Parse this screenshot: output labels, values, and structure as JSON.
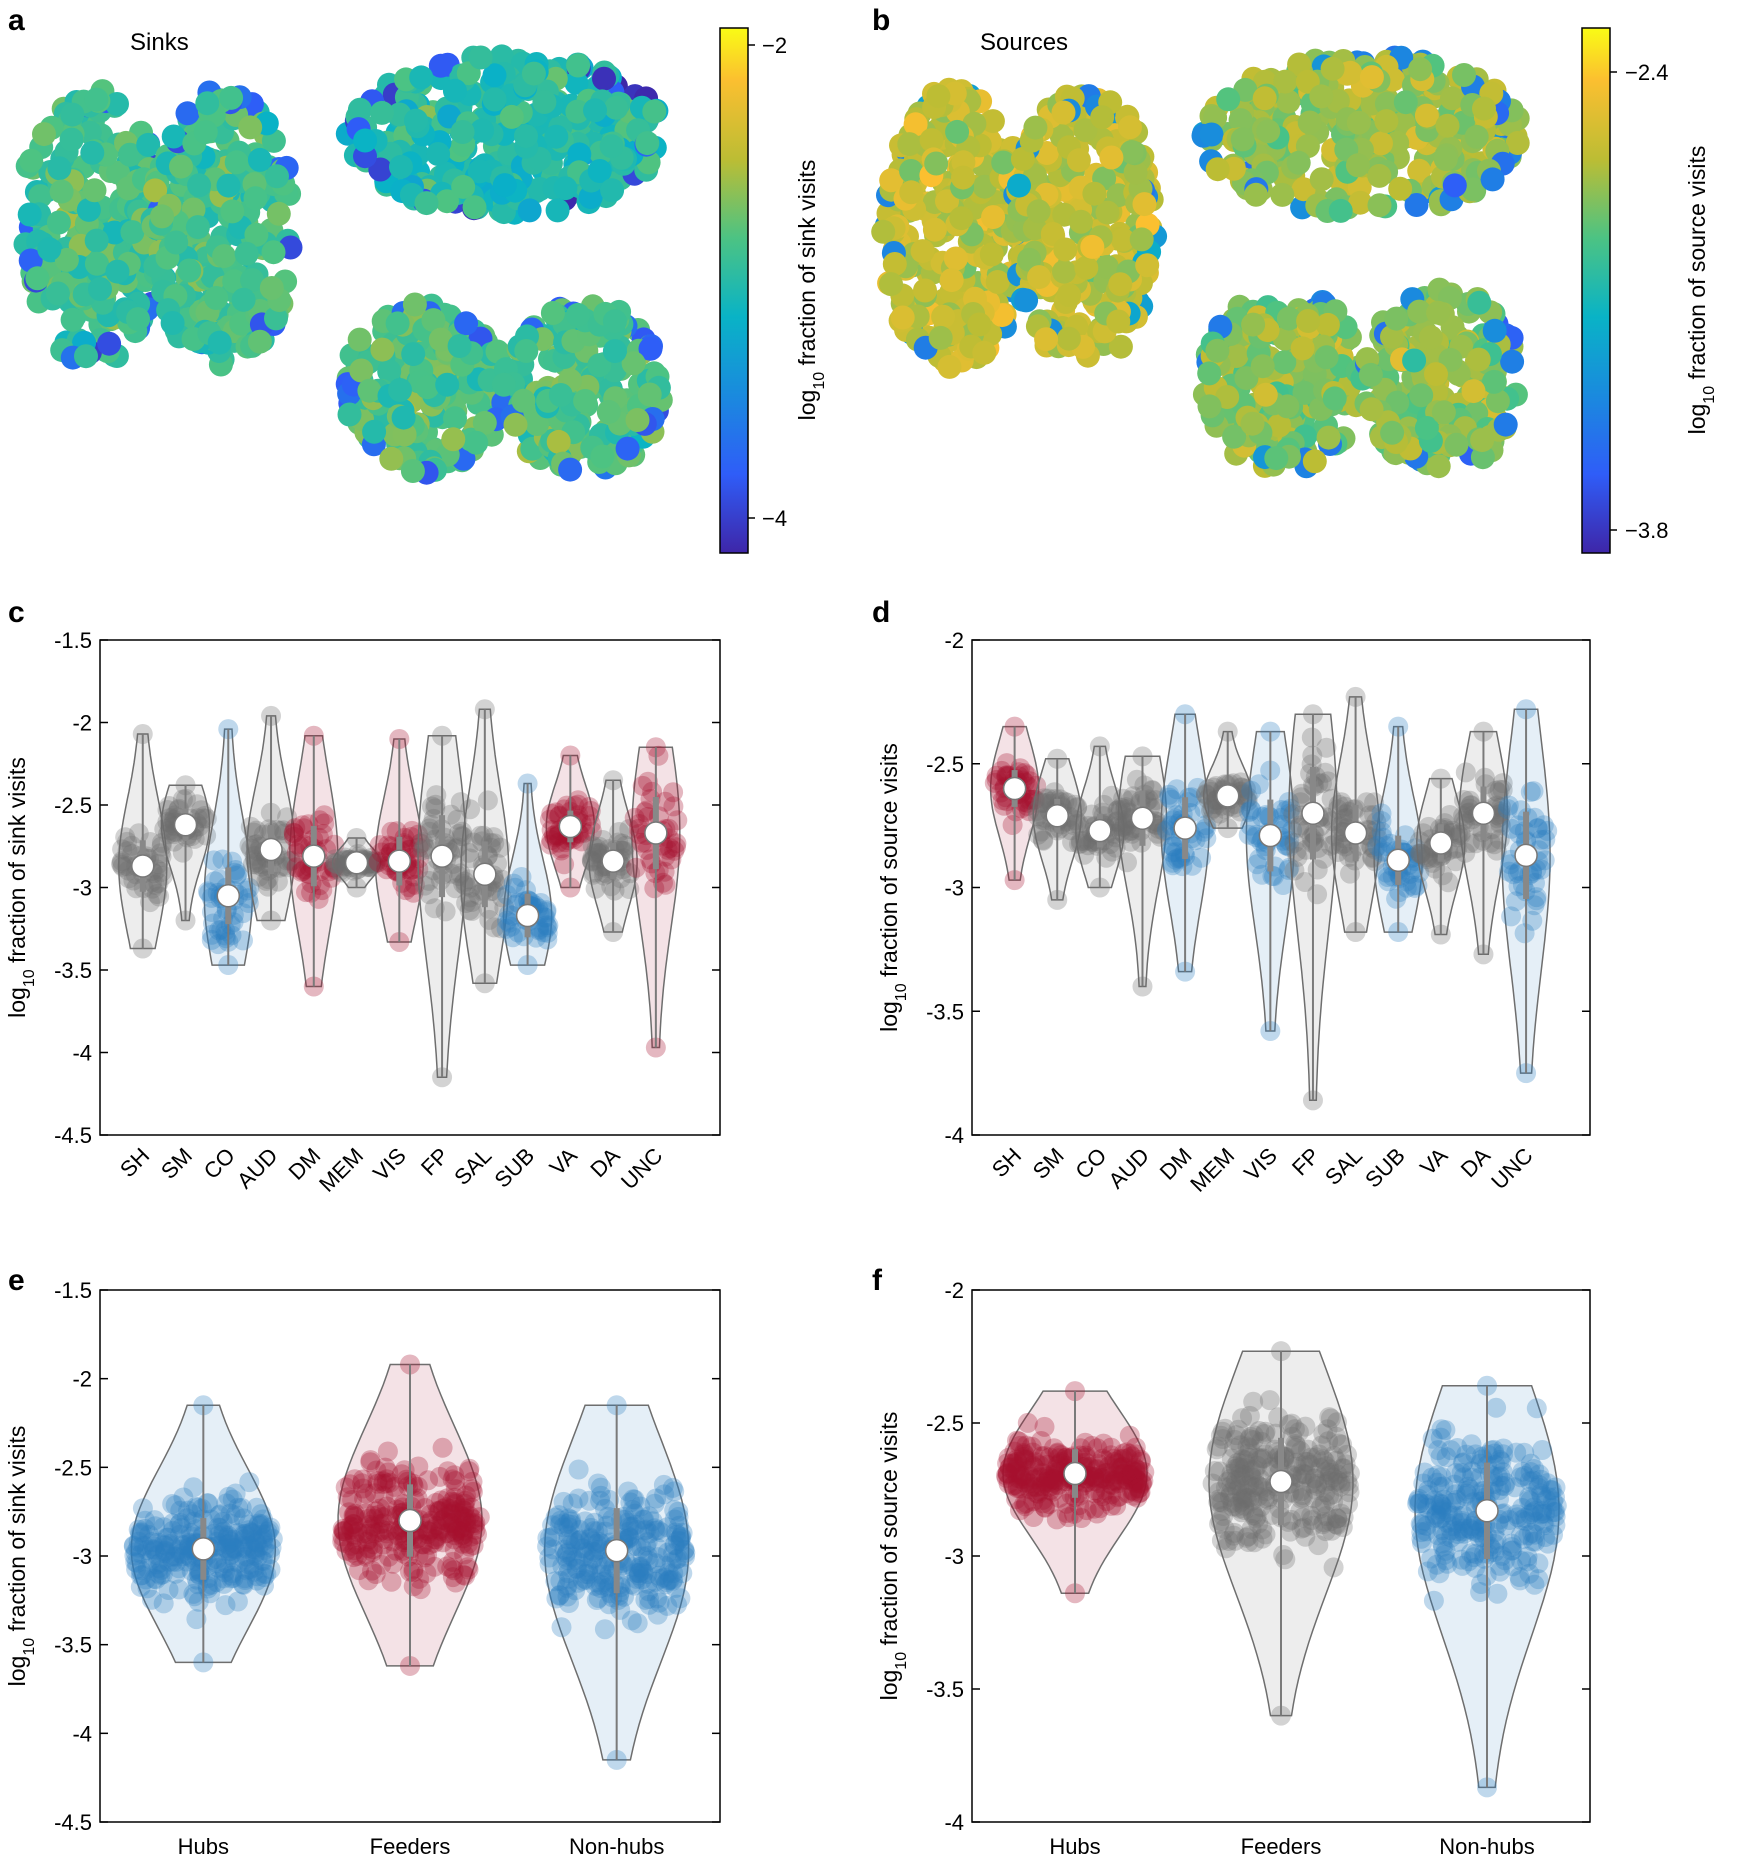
{
  "panels": {
    "a": {
      "label": "a",
      "title": "Sinks",
      "colorbar": {
        "label": "log10 fraction of sink visits",
        "ticks": [
          "−2",
          "−4"
        ],
        "range": [
          -4.3,
          -1.9
        ]
      }
    },
    "b": {
      "label": "b",
      "title": "Sources",
      "colorbar": {
        "label": "log10 fraction of source visits",
        "ticks": [
          "−2.4",
          "−3.8"
        ],
        "range": [
          -3.9,
          -2.25
        ]
      }
    },
    "c": {
      "label": "c"
    },
    "d": {
      "label": "d"
    },
    "e": {
      "label": "e"
    },
    "f": {
      "label": "f"
    }
  },
  "colors": {
    "red": "#a5102e",
    "blue": "#2a7ebf",
    "gray": "#6e6e6e",
    "violin_edge": "#6e6e6e"
  },
  "chart_data": [
    {
      "panel": "c",
      "type": "violin",
      "ylabel": "log10 fraction of sink visits",
      "ylim": [
        -4.5,
        -1.5
      ],
      "yticks": [
        "-4.5",
        "-4",
        "-3.5",
        "-3",
        "-2.5",
        "-2",
        "-1.5"
      ],
      "categories": [
        "SH",
        "SM",
        "CO",
        "AUD",
        "DM",
        "MEM",
        "VIS",
        "FP",
        "SAL",
        "SUB",
        "VA",
        "DA",
        "UNC"
      ],
      "groups": [
        "gray",
        "gray",
        "blue",
        "gray",
        "red",
        "gray",
        "red",
        "gray",
        "gray",
        "blue",
        "red",
        "gray",
        "red"
      ],
      "medians": [
        -2.87,
        -2.62,
        -3.05,
        -2.77,
        -2.81,
        -2.85,
        -2.84,
        -2.81,
        -2.92,
        -3.17,
        -2.63,
        -2.84,
        -2.67
      ],
      "min": [
        -3.37,
        -3.2,
        -3.47,
        -3.2,
        -3.6,
        -3.0,
        -3.33,
        -4.15,
        -3.58,
        -3.47,
        -3.0,
        -3.27,
        -3.97
      ],
      "max": [
        -2.07,
        -2.38,
        -2.04,
        -1.96,
        -2.08,
        -2.7,
        -2.1,
        -2.08,
        -1.92,
        -2.37,
        -2.2,
        -2.35,
        -2.15
      ]
    },
    {
      "panel": "d",
      "type": "violin",
      "ylabel": "log10 fraction of source visits",
      "ylim": [
        -4,
        -2
      ],
      "yticks": [
        "-4",
        "-3.5",
        "-3",
        "-2.5",
        "-2"
      ],
      "categories": [
        "SH",
        "SM",
        "CO",
        "AUD",
        "DM",
        "MEM",
        "VIS",
        "FP",
        "SAL",
        "SUB",
        "VA",
        "DA",
        "UNC"
      ],
      "groups": [
        "red",
        "gray",
        "gray",
        "gray",
        "blue",
        "gray",
        "blue",
        "gray",
        "gray",
        "blue",
        "gray",
        "gray",
        "blue"
      ],
      "medians": [
        -2.6,
        -2.71,
        -2.77,
        -2.72,
        -2.76,
        -2.63,
        -2.79,
        -2.7,
        -2.78,
        -2.89,
        -2.82,
        -2.7,
        -2.87
      ],
      "min": [
        -2.97,
        -3.05,
        -3.0,
        -3.4,
        -3.34,
        -2.76,
        -3.58,
        -3.86,
        -3.18,
        -3.18,
        -3.19,
        -3.27,
        -3.75
      ],
      "max": [
        -2.35,
        -2.48,
        -2.43,
        -2.47,
        -2.3,
        -2.37,
        -2.37,
        -2.3,
        -2.23,
        -2.35,
        -2.56,
        -2.37,
        -2.28
      ]
    },
    {
      "panel": "e",
      "type": "violin",
      "ylabel": "log10 fraction of sink visits",
      "ylim": [
        -4.5,
        -1.5
      ],
      "yticks": [
        "-4.5",
        "-4",
        "-3.5",
        "-3",
        "-2.5",
        "-2",
        "-1.5"
      ],
      "categories": [
        "Hubs",
        "Feeders",
        "Non-hubs"
      ],
      "groups": [
        "blue",
        "red",
        "blue"
      ],
      "medians": [
        -2.96,
        -2.8,
        -2.97
      ],
      "min": [
        -3.6,
        -3.62,
        -4.15
      ],
      "max": [
        -2.15,
        -1.92,
        -2.15
      ]
    },
    {
      "panel": "f",
      "type": "violin",
      "ylabel": "log10 fraction of source visits",
      "ylim": [
        -4,
        -2
      ],
      "yticks": [
        "-4",
        "-3.5",
        "-3",
        "-2.5",
        "-2"
      ],
      "categories": [
        "Hubs",
        "Feeders",
        "Non-hubs"
      ],
      "groups": [
        "red",
        "gray",
        "blue"
      ],
      "medians": [
        -2.69,
        -2.72,
        -2.83
      ],
      "min": [
        -3.14,
        -3.6,
        -3.87
      ],
      "max": [
        -2.38,
        -2.23,
        -2.36
      ]
    }
  ]
}
